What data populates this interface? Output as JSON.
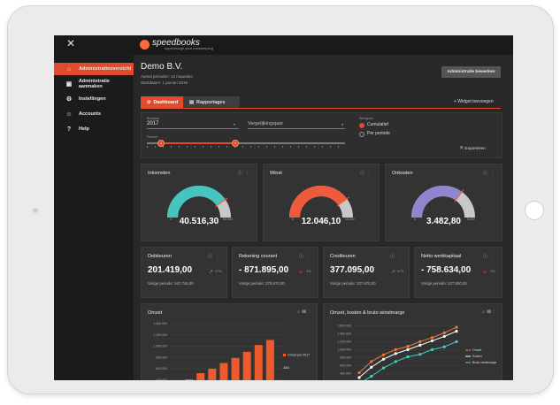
{
  "brand": {
    "name": "speedbooks",
    "tagline": "supercharge your bookkeeping"
  },
  "sidebar": {
    "items": [
      {
        "label": "Administratieoverzicht",
        "icon": "home-icon",
        "glyph": "⌂",
        "active": true
      },
      {
        "label": "Administratie aanmaken",
        "icon": "add-document-icon",
        "glyph": "▣",
        "active": false
      },
      {
        "label": "Instellingen",
        "icon": "gear-icon",
        "glyph": "⚙",
        "active": false
      },
      {
        "label": "Accounts",
        "icon": "users-icon",
        "glyph": "☺",
        "active": false
      },
      {
        "label": "Help",
        "icon": "help-icon",
        "glyph": "?",
        "active": false
      }
    ]
  },
  "header": {
    "company": "Demo B.V.",
    "period_label": "Aantal perioden: 12 maanden",
    "start_label": "Startdatum: 1 januari 2016",
    "edit_button": "Administratie bewerken"
  },
  "tabs": [
    {
      "label": "Dashboard",
      "icon": "dashboard-icon",
      "active": true
    },
    {
      "label": "Rapportages",
      "icon": "report-icon",
      "active": false
    }
  ],
  "add_widget": "+ Widget toevoegen",
  "filters": {
    "year_label": "Boekjaar",
    "year_value": "2017",
    "compare_placeholder": "Vergelijkingsjaar",
    "period_label": "Periode",
    "handle_start": "2",
    "handle_end": "8",
    "mode_label": "Weergave",
    "mode_options": [
      "Cumulatief",
      "Per periode"
    ],
    "mode_selected": "Cumulatief",
    "export_label": "Exporteren"
  },
  "gauges": [
    {
      "title": "Inkomsten",
      "value": "40.516,30",
      "min": "0",
      "max": "50.000",
      "fraction": 0.81,
      "color": "#45c4c0"
    },
    {
      "title": "Winst",
      "value": "12.046,10",
      "min": "0",
      "max": "15.000",
      "fraction": 0.8,
      "color": "#ee5a3c"
    },
    {
      "title": "Onkosten",
      "value": "3.482,80",
      "min": "0",
      "max": "5.000",
      "fraction": 0.7,
      "color": "#8f86cf"
    }
  ],
  "kpis": [
    {
      "title": "Debiteuren",
      "value": "201.419,00",
      "trend": "up",
      "pct": "47%",
      "prev_label": "Vorige periode:",
      "prev_value": "167.744,00"
    },
    {
      "title": "Rekening courant",
      "value": "- 871.895,00",
      "trend": "down",
      "pct": "3%",
      "prev_label": "Vorige periode:",
      "prev_value": "279.670,00"
    },
    {
      "title": "Crediteuren",
      "value": "377.095,00",
      "trend": "up",
      "pct": "67%",
      "prev_label": "Vorige periode:",
      "prev_value": "227.670,00"
    },
    {
      "title": "Netto werkkapitaal",
      "value": "- 758.634,00",
      "trend": "down",
      "pct": "2%",
      "prev_label": "Vorige periode:",
      "prev_value": "427.500,00"
    }
  ],
  "colors": {
    "accent": "#e14a2b",
    "up": "#3cc47a",
    "down": "#e14a2b"
  },
  "chart_data": [
    {
      "type": "bar",
      "title": "Omzet",
      "yticks": [
        "1.400.000",
        "1.200.000",
        "1.000.000",
        "800.000",
        "600.000",
        "400.000"
      ],
      "ylim": [
        300000,
        1400000
      ],
      "categories": [
        "1",
        "2",
        "3",
        "4",
        "5",
        "6",
        "7",
        "8",
        "9"
      ],
      "values": [
        330000,
        410000,
        520000,
        600000,
        700000,
        790000,
        900000,
        1020000,
        1110000
      ],
      "legend": "Omzet per 2017",
      "annotation": "144"
    },
    {
      "type": "line",
      "title": "Omzet, kosten & bruto winstmarge",
      "yticks": [
        "1.600.000",
        "1.400.000",
        "1.200.000",
        "1.000.000",
        "800.000",
        "600.000",
        "400.000",
        "200.000"
      ],
      "ylim": [
        100000,
        1650000
      ],
      "x": [
        1,
        2,
        3,
        4,
        5,
        6,
        7,
        8,
        9
      ],
      "series": [
        {
          "name": "Omzet",
          "color": "#f07a3a",
          "values": [
            420000,
            700000,
            870000,
            1000000,
            1080000,
            1200000,
            1300000,
            1420000,
            1560000
          ]
        },
        {
          "name": "Kosten",
          "color": "#ffffff",
          "values": [
            300000,
            560000,
            760000,
            900000,
            1000000,
            1110000,
            1220000,
            1330000,
            1460000
          ]
        },
        {
          "name": "Bruto winstmarge",
          "color": "#3fd0c8",
          "values": [
            150000,
            330000,
            540000,
            700000,
            820000,
            880000,
            1000000,
            1070000,
            1200000
          ]
        }
      ]
    }
  ]
}
